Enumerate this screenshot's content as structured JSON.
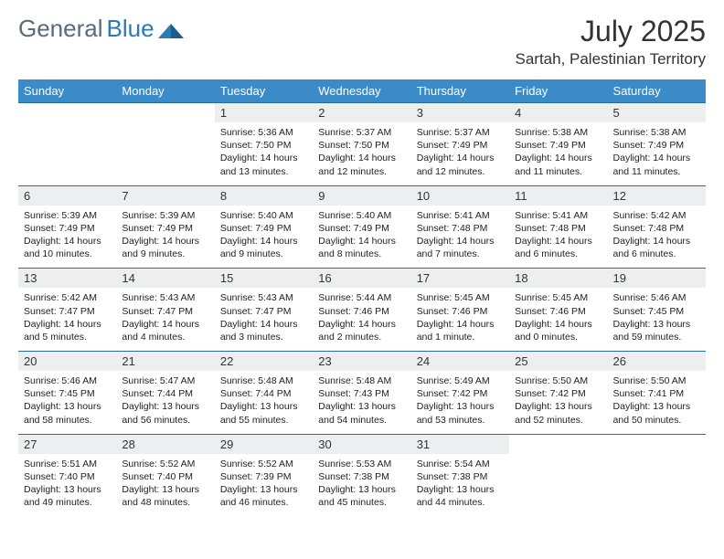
{
  "logo": {
    "text1": "General",
    "text2": "Blue"
  },
  "title": "July 2025",
  "location": "Sartah, Palestinian Territory",
  "colors": {
    "header_bg": "#3b8bc9",
    "header_text": "#ffffff",
    "daynum_bg": "#eceef0",
    "border": "#2a6aa0",
    "logo_gray": "#5a6b7a",
    "logo_blue": "#2a7ab8"
  },
  "dayNames": [
    "Sunday",
    "Monday",
    "Tuesday",
    "Wednesday",
    "Thursday",
    "Friday",
    "Saturday"
  ],
  "days": [
    {
      "n": "1",
      "sr": "5:36 AM",
      "ss": "7:50 PM",
      "dl": "14 hours and 13 minutes."
    },
    {
      "n": "2",
      "sr": "5:37 AM",
      "ss": "7:50 PM",
      "dl": "14 hours and 12 minutes."
    },
    {
      "n": "3",
      "sr": "5:37 AM",
      "ss": "7:49 PM",
      "dl": "14 hours and 12 minutes."
    },
    {
      "n": "4",
      "sr": "5:38 AM",
      "ss": "7:49 PM",
      "dl": "14 hours and 11 minutes."
    },
    {
      "n": "5",
      "sr": "5:38 AM",
      "ss": "7:49 PM",
      "dl": "14 hours and 11 minutes."
    },
    {
      "n": "6",
      "sr": "5:39 AM",
      "ss": "7:49 PM",
      "dl": "14 hours and 10 minutes."
    },
    {
      "n": "7",
      "sr": "5:39 AM",
      "ss": "7:49 PM",
      "dl": "14 hours and 9 minutes."
    },
    {
      "n": "8",
      "sr": "5:40 AM",
      "ss": "7:49 PM",
      "dl": "14 hours and 9 minutes."
    },
    {
      "n": "9",
      "sr": "5:40 AM",
      "ss": "7:49 PM",
      "dl": "14 hours and 8 minutes."
    },
    {
      "n": "10",
      "sr": "5:41 AM",
      "ss": "7:48 PM",
      "dl": "14 hours and 7 minutes."
    },
    {
      "n": "11",
      "sr": "5:41 AM",
      "ss": "7:48 PM",
      "dl": "14 hours and 6 minutes."
    },
    {
      "n": "12",
      "sr": "5:42 AM",
      "ss": "7:48 PM",
      "dl": "14 hours and 6 minutes."
    },
    {
      "n": "13",
      "sr": "5:42 AM",
      "ss": "7:47 PM",
      "dl": "14 hours and 5 minutes."
    },
    {
      "n": "14",
      "sr": "5:43 AM",
      "ss": "7:47 PM",
      "dl": "14 hours and 4 minutes."
    },
    {
      "n": "15",
      "sr": "5:43 AM",
      "ss": "7:47 PM",
      "dl": "14 hours and 3 minutes."
    },
    {
      "n": "16",
      "sr": "5:44 AM",
      "ss": "7:46 PM",
      "dl": "14 hours and 2 minutes."
    },
    {
      "n": "17",
      "sr": "5:45 AM",
      "ss": "7:46 PM",
      "dl": "14 hours and 1 minute."
    },
    {
      "n": "18",
      "sr": "5:45 AM",
      "ss": "7:46 PM",
      "dl": "14 hours and 0 minutes."
    },
    {
      "n": "19",
      "sr": "5:46 AM",
      "ss": "7:45 PM",
      "dl": "13 hours and 59 minutes."
    },
    {
      "n": "20",
      "sr": "5:46 AM",
      "ss": "7:45 PM",
      "dl": "13 hours and 58 minutes."
    },
    {
      "n": "21",
      "sr": "5:47 AM",
      "ss": "7:44 PM",
      "dl": "13 hours and 56 minutes."
    },
    {
      "n": "22",
      "sr": "5:48 AM",
      "ss": "7:44 PM",
      "dl": "13 hours and 55 minutes."
    },
    {
      "n": "23",
      "sr": "5:48 AM",
      "ss": "7:43 PM",
      "dl": "13 hours and 54 minutes."
    },
    {
      "n": "24",
      "sr": "5:49 AM",
      "ss": "7:42 PM",
      "dl": "13 hours and 53 minutes."
    },
    {
      "n": "25",
      "sr": "5:50 AM",
      "ss": "7:42 PM",
      "dl": "13 hours and 52 minutes."
    },
    {
      "n": "26",
      "sr": "5:50 AM",
      "ss": "7:41 PM",
      "dl": "13 hours and 50 minutes."
    },
    {
      "n": "27",
      "sr": "5:51 AM",
      "ss": "7:40 PM",
      "dl": "13 hours and 49 minutes."
    },
    {
      "n": "28",
      "sr": "5:52 AM",
      "ss": "7:40 PM",
      "dl": "13 hours and 48 minutes."
    },
    {
      "n": "29",
      "sr": "5:52 AM",
      "ss": "7:39 PM",
      "dl": "13 hours and 46 minutes."
    },
    {
      "n": "30",
      "sr": "5:53 AM",
      "ss": "7:38 PM",
      "dl": "13 hours and 45 minutes."
    },
    {
      "n": "31",
      "sr": "5:54 AM",
      "ss": "7:38 PM",
      "dl": "13 hours and 44 minutes."
    }
  ],
  "labels": {
    "sunrise": "Sunrise:",
    "sunset": "Sunset:",
    "daylight": "Daylight:"
  },
  "layout": {
    "firstDayOffset": 2,
    "rows": 5,
    "cols": 7
  }
}
